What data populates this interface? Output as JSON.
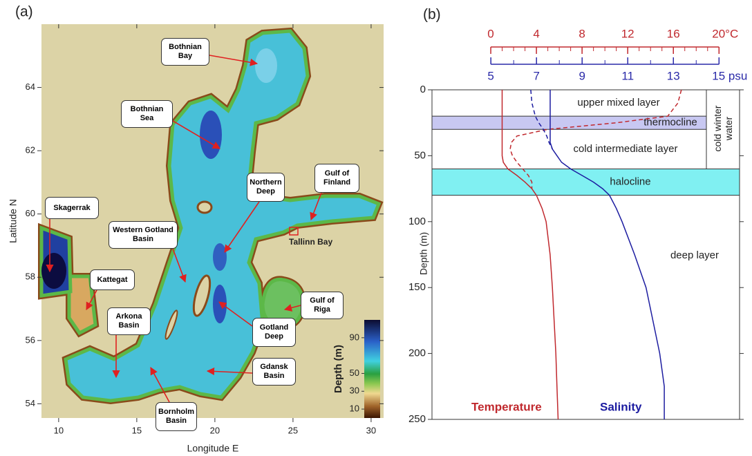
{
  "chart_data": [
    {
      "type": "map",
      "label": "(a)",
      "xlabel": "Longitude E",
      "ylabel": "Latitude N",
      "xlim": [
        8.9,
        30.8
      ],
      "ylim": [
        53.55,
        66.0
      ],
      "xticks": [
        10,
        15,
        20,
        25,
        30
      ],
      "yticks": [
        54,
        56,
        58,
        60,
        62,
        64
      ],
      "annotations": [
        "Bothnian Bay",
        "Bothnian Sea",
        "Skagerrak",
        "Kattegat",
        "Arkona Basin",
        "Bornholm Basin",
        "Western Gotland Basin",
        "Northern Deep",
        "Gotland Deep",
        "Gulf of Finland",
        "Gulf of Riga",
        "Gdansk Basin",
        "Tallinn Bay"
      ],
      "colorbar": {
        "label": "Depth (m)",
        "lim": [
          0,
          110
        ],
        "ticks": [
          10,
          30,
          50,
          90
        ]
      }
    },
    {
      "type": "line",
      "label": "(b)",
      "ylabel": "Depth (m)",
      "ylim": [
        0,
        250
      ],
      "yticks": [
        0,
        50,
        100,
        150,
        200,
        250
      ],
      "xlim": [
        -5.15,
        21.8
      ],
      "xticks": [
        0,
        4,
        8,
        12,
        16,
        {
          "value": 20,
          "label": "20°C"
        }
      ],
      "xminorticks": [
        0,
        1,
        2,
        3,
        4,
        5,
        6,
        7,
        8,
        9,
        10,
        11,
        12,
        13,
        14,
        15,
        16,
        17,
        18,
        19,
        20
      ],
      "x2lim": [
        2.42,
        15.9
      ],
      "x2ticks": [
        5,
        7,
        9,
        11,
        13,
        {
          "value": 15,
          "label": "15 psu"
        }
      ],
      "x2minorticks": [
        5,
        6,
        7,
        8,
        9,
        10,
        11,
        12,
        13,
        14,
        15
      ],
      "depth": [
        0,
        10,
        20,
        25,
        30,
        35,
        40,
        45,
        50,
        55,
        60,
        65,
        70,
        75,
        80,
        90,
        100,
        125,
        150,
        175,
        200,
        225,
        250
      ],
      "series": [
        {
          "name": "Temperature",
          "color": "#c0282d",
          "axis": "x",
          "dashed": false,
          "values": [
            1.0,
            1.0,
            1.0,
            1.0,
            1.0,
            1.0,
            1.0,
            1.0,
            1.0,
            1.1,
            1.5,
            2.3,
            3.0,
            3.6,
            4.0,
            4.5,
            4.85,
            5.2,
            5.4,
            5.55,
            5.7,
            5.8,
            5.9
          ]
        },
        {
          "color": "#c0282d",
          "axis": "x",
          "dashed": true,
          "values": [
            16.7,
            16.4,
            15.5,
            11,
            5,
            2.3,
            1.8,
            1.7,
            1.9,
            2.3,
            2.8,
            3.3,
            3.6,
            3.6,
            null,
            null,
            null,
            null,
            null,
            null,
            null,
            null,
            null
          ]
        },
        {
          "name": "Salinity",
          "color": "#1c1ca0",
          "axis": "x2",
          "dashed": false,
          "values": [
            7.6,
            7.6,
            7.6,
            7.6,
            7.6,
            7.6,
            7.6,
            7.7,
            7.9,
            8.1,
            8.5,
            9.0,
            9.5,
            9.9,
            10.2,
            10.5,
            10.75,
            11.3,
            11.8,
            12.1,
            12.4,
            12.6,
            12.6
          ]
        },
        {
          "color": "#1c1ca0",
          "axis": "x2",
          "dashed": true,
          "values": [
            6.75,
            6.8,
            6.95,
            7.1,
            7.3,
            7.45,
            7.55,
            7.7,
            null,
            null,
            null,
            null,
            null,
            null,
            null,
            null,
            null,
            null,
            null,
            null,
            null,
            null,
            null
          ]
        }
      ],
      "layers": [
        {
          "name": "upper mixed layer",
          "top": 0,
          "bottom": 20
        },
        {
          "name": "thermocline",
          "top": 20,
          "bottom": 30,
          "color": "#c8c8f2"
        },
        {
          "name": "cold intermediate layer",
          "top": 30,
          "bottom": 60
        },
        {
          "name": "halocline",
          "top": 60,
          "bottom": 80,
          "color": "#80f0f2"
        },
        {
          "name": "deep layer",
          "top": 80,
          "bottom": 250
        }
      ],
      "side_note": {
        "text": "cold winter water",
        "top": 0,
        "bottom": 60
      }
    }
  ]
}
